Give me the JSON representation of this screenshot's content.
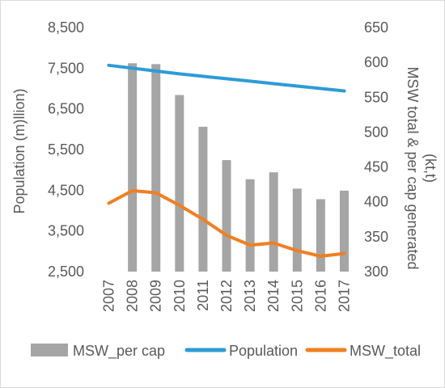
{
  "chart_data": {
    "type": "bar",
    "categories": [
      "2007",
      "2008",
      "2009",
      "2010",
      "2011",
      "2012",
      "2013",
      "2014",
      "2015",
      "2016",
      "2017"
    ],
    "series": [
      {
        "name": "MSW_per cap",
        "type": "bar",
        "axis": "left",
        "color": "#a5a5a5",
        "values": [
          null,
          7620,
          7600,
          6840,
          6060,
          5240,
          4770,
          4940,
          4540,
          4280,
          4490
        ]
      },
      {
        "name": "Population",
        "type": "line",
        "axis": "left",
        "color": "#2e9bd6",
        "values": [
          7570,
          7500,
          7430,
          7360,
          7300,
          7240,
          7180,
          7120,
          7060,
          7000,
          6940
        ]
      },
      {
        "name": "MSW_total",
        "type": "line",
        "axis": "right",
        "color": "#f07f21",
        "values": [
          398,
          416,
          413,
          395,
          375,
          352,
          338,
          341,
          330,
          322,
          326
        ]
      }
    ],
    "y_left": {
      "label": "Population (m)llion)",
      "lim": [
        2500,
        8500
      ],
      "ticks": [
        2500,
        3500,
        4500,
        5500,
        6500,
        7500,
        8500
      ],
      "tick_labels": [
        "2,500",
        "3,500",
        "4,500",
        "5,500",
        "6,500",
        "7,500",
        "8,500"
      ]
    },
    "y_right": {
      "label_line1": "MSW total & per cap generated",
      "label_line2": "(kt,t)",
      "lim": [
        300,
        650
      ],
      "ticks": [
        300,
        350,
        400,
        450,
        500,
        550,
        600,
        650
      ],
      "tick_labels": [
        "300",
        "350",
        "400",
        "450",
        "500",
        "550",
        "600",
        "650"
      ]
    },
    "grid": false,
    "legend": "bottom"
  }
}
